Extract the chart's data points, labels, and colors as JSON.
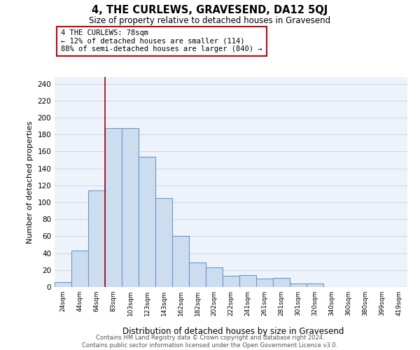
{
  "title": "4, THE CURLEWS, GRAVESEND, DA12 5QJ",
  "subtitle": "Size of property relative to detached houses in Gravesend",
  "xlabel": "Distribution of detached houses by size in Gravesend",
  "ylabel": "Number of detached properties",
  "bar_labels": [
    "24sqm",
    "44sqm",
    "64sqm",
    "83sqm",
    "103sqm",
    "123sqm",
    "143sqm",
    "162sqm",
    "182sqm",
    "202sqm",
    "222sqm",
    "241sqm",
    "261sqm",
    "281sqm",
    "301sqm",
    "320sqm",
    "340sqm",
    "360sqm",
    "380sqm",
    "399sqm",
    "419sqm"
  ],
  "bar_values": [
    6,
    43,
    114,
    188,
    188,
    154,
    105,
    60,
    29,
    23,
    13,
    14,
    10,
    11,
    4,
    4,
    0,
    0,
    0,
    0,
    0
  ],
  "bar_color": "#ccddf0",
  "bar_edge_color": "#6699cc",
  "grid_color": "#d0d8e8",
  "background_color": "#eef2fb",
  "vline_color": "#aa0000",
  "annotation_text_line1": "4 THE CURLEWS: 78sqm",
  "annotation_text_line2": "← 12% of detached houses are smaller (114)",
  "annotation_text_line3": "88% of semi-detached houses are larger (840) →",
  "ylim": [
    0,
    248
  ],
  "yticks": [
    0,
    20,
    40,
    60,
    80,
    100,
    120,
    140,
    160,
    180,
    200,
    220,
    240
  ],
  "footer_line1": "Contains HM Land Registry data © Crown copyright and database right 2024.",
  "footer_line2": "Contains public sector information licensed under the Open Government Licence v3.0."
}
